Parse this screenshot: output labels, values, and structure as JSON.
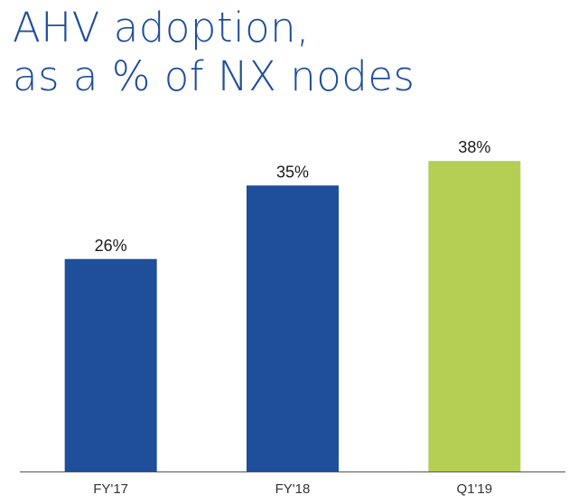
{
  "title_line1": "AHV adoption,",
  "title_line2": "as a % of NX nodes",
  "colors": {
    "title": "#1f4e9a",
    "bar_primary": "#1f4e9a",
    "bar_highlight": "#b5cf55",
    "axis": "#555555"
  },
  "chart_data": {
    "type": "bar",
    "categories": [
      "FY'17",
      "FY'18",
      "Q1'19"
    ],
    "values": [
      26,
      35,
      38
    ],
    "value_labels": [
      "26%",
      "35%",
      "38%"
    ],
    "highlight_index": 2,
    "ylim": [
      0,
      42
    ],
    "grid": false,
    "legend": "none"
  }
}
